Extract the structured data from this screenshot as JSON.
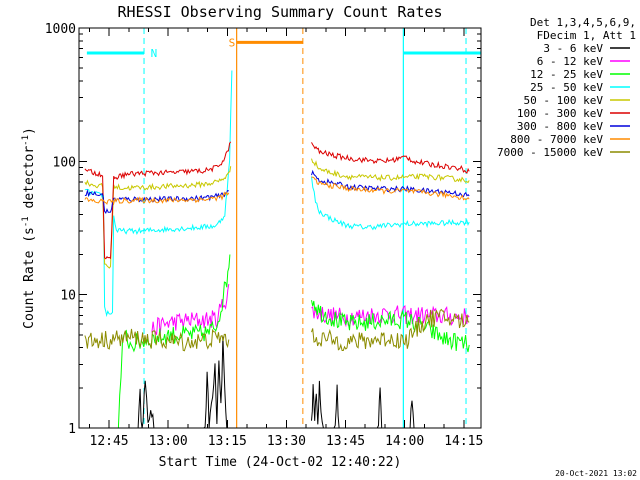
{
  "chart_data": {
    "type": "line",
    "title": "RHESSI Observing Summary Count Rates",
    "xlabel": "Start Time (24-Oct-02 12:40:22)",
    "ylabel_parts": [
      "Count Rate (s",
      "-1",
      " detector",
      "-1",
      ")"
    ],
    "yscale": "log",
    "ylim": [
      1,
      1000
    ],
    "xlim": [
      -3.0,
      99.0
    ],
    "x_units": "minutes after 12:40:22",
    "x_ticks": [
      {
        "x": 4.63,
        "label": "12:45"
      },
      {
        "x": 19.63,
        "label": "13:00"
      },
      {
        "x": 34.63,
        "label": "13:15"
      },
      {
        "x": 49.63,
        "label": "13:30"
      },
      {
        "x": 64.63,
        "label": "13:45"
      },
      {
        "x": 79.63,
        "label": "14:00"
      },
      {
        "x": 94.63,
        "label": "14:15"
      }
    ],
    "y_ticks": [
      {
        "y": 1,
        "label": "1"
      },
      {
        "y": 10,
        "label": "10"
      },
      {
        "y": 100,
        "label": "100"
      },
      {
        "y": 1000,
        "label": "1000"
      }
    ],
    "legend_header": [
      "Det 1,3,4,5,6,9,",
      "FDecim 1, Att 1"
    ],
    "legend_position": "right, outside plot",
    "series": [
      {
        "name": "3 - 6 keV",
        "color": "#000000",
        "segments": [
          [
            [
              12.0,
              1
            ],
            [
              12.5,
              1.7
            ],
            [
              13.0,
              1
            ],
            [
              13.8,
              2.2
            ],
            [
              14.5,
              1
            ],
            [
              15.2,
              1.5
            ],
            [
              16.0,
              1
            ],
            [
              29.0,
              1
            ],
            [
              29.5,
              2.5
            ],
            [
              30.0,
              1
            ],
            [
              31.5,
              3
            ],
            [
              32.0,
              1.2
            ],
            [
              32.5,
              3.5
            ],
            [
              33.0,
              1.5
            ],
            [
              33.5,
              4.5
            ],
            [
              34.0,
              2
            ],
            [
              34.5,
              1
            ]
          ],
          [
            [
              56.0,
              1
            ],
            [
              56.4,
              2.2
            ],
            [
              56.8,
              1
            ],
            [
              57.2,
              1.8
            ],
            [
              57.6,
              1
            ],
            [
              58.0,
              2.4
            ],
            [
              58.4,
              1.2
            ],
            [
              59.0,
              1
            ],
            [
              62.0,
              1
            ],
            [
              62.5,
              2
            ],
            [
              63.0,
              1
            ],
            [
              73.0,
              1
            ],
            [
              73.4,
              2
            ],
            [
              73.8,
              1
            ],
            [
              81.0,
              1
            ],
            [
              81.5,
              1.7
            ],
            [
              82.0,
              1
            ]
          ]
        ]
      },
      {
        "name": "6 - 12 keV",
        "color": "#ff00ff",
        "segments": [
          [
            [
              15.5,
              5.5
            ],
            [
              20.0,
              6.2
            ],
            [
              25.0,
              6.4
            ],
            [
              30.0,
              6.5
            ],
            [
              32.0,
              6.6
            ],
            [
              33.0,
              8
            ],
            [
              34.5,
              9.5
            ],
            [
              35.0,
              12
            ]
          ],
          [
            [
              56.0,
              7.5
            ],
            [
              60.0,
              7.0
            ],
            [
              65.0,
              6.8
            ],
            [
              70.0,
              7.0
            ],
            [
              75.0,
              7.2
            ],
            [
              80.0,
              7.0
            ],
            [
              85.0,
              7.0
            ],
            [
              90.0,
              6.9
            ],
            [
              96.0,
              6.8
            ]
          ]
        ]
      },
      {
        "name": "12 - 25 keV",
        "color": "#00ff00",
        "segments": [
          [
            [
              7.0,
              1
            ],
            [
              8.0,
              4
            ],
            [
              9.0,
              5
            ],
            [
              10.0,
              4.2
            ],
            [
              15.0,
              4.6
            ],
            [
              20.0,
              5.0
            ],
            [
              25.0,
              5.0
            ],
            [
              30.0,
              5.2
            ],
            [
              32.0,
              6
            ],
            [
              33.0,
              8
            ],
            [
              34.5,
              13
            ],
            [
              35.3,
              20
            ]
          ],
          [
            [
              56.0,
              9.5
            ],
            [
              58.0,
              7.5
            ],
            [
              62.0,
              6.5
            ],
            [
              65.0,
              6.0
            ],
            [
              70.0,
              6.2
            ],
            [
              75.0,
              6.4
            ],
            [
              80.0,
              6.5
            ],
            [
              85.0,
              5.6
            ],
            [
              90.0,
              4.6
            ],
            [
              93.0,
              4.4
            ],
            [
              96.0,
              4.2
            ]
          ]
        ]
      },
      {
        "name": "25 - 50 keV",
        "color": "#00ffff",
        "segments": [
          [
            [
              -1.5,
              60
            ],
            [
              2.0,
              56
            ],
            [
              3.2,
              55
            ],
            [
              3.5,
              8
            ],
            [
              4.0,
              7.3
            ],
            [
              5.5,
              7.3
            ],
            [
              5.8,
              40
            ],
            [
              6.5,
              30
            ],
            [
              12.0,
              30
            ],
            [
              20.0,
              31
            ],
            [
              28.0,
              32
            ],
            [
              32.0,
              33
            ],
            [
              34.0,
              40
            ],
            [
              35.2,
              100
            ],
            [
              35.8,
              480
            ]
          ],
          [
            [
              56.0,
              75
            ],
            [
              57.0,
              50
            ],
            [
              58.0,
              42
            ],
            [
              61.0,
              37
            ],
            [
              65.0,
              33
            ],
            [
              70.0,
              32
            ],
            [
              75.0,
              33
            ],
            [
              80.0,
              34
            ],
            [
              85.0,
              34
            ],
            [
              90.0,
              34.5
            ],
            [
              96.0,
              35
            ]
          ]
        ]
      },
      {
        "name": "50 - 100 keV",
        "color": "#c8c800",
        "segments": [
          [
            [
              -1.5,
              70
            ],
            [
              1.0,
              66
            ],
            [
              3.0,
              65
            ],
            [
              3.5,
              17
            ],
            [
              5.0,
              16
            ],
            [
              5.8,
              65
            ],
            [
              8.0,
              63
            ],
            [
              15.0,
              64
            ],
            [
              20.0,
              65
            ],
            [
              25.0,
              66
            ],
            [
              30.0,
              68
            ],
            [
              33.0,
              72
            ],
            [
              35.0,
              80
            ],
            [
              35.5,
              92
            ]
          ],
          [
            [
              56.0,
              105
            ],
            [
              58.0,
              88
            ],
            [
              61.0,
              82
            ],
            [
              65.0,
              77
            ],
            [
              70.0,
              76
            ],
            [
              75.0,
              75
            ],
            [
              80.0,
              76
            ],
            [
              85.0,
              77
            ],
            [
              90.0,
              75
            ],
            [
              96.0,
              72
            ]
          ]
        ]
      },
      {
        "name": "100 - 300 keV",
        "color": "#dc0000",
        "segments": [
          [
            [
              -1.5,
              85
            ],
            [
              1.0,
              82
            ],
            [
              3.0,
              80
            ],
            [
              3.5,
              19
            ],
            [
              5.0,
              18
            ],
            [
              5.8,
              75
            ],
            [
              9.0,
              80
            ],
            [
              15.0,
              82
            ],
            [
              20.0,
              82
            ],
            [
              25.0,
              84
            ],
            [
              29.0,
              85
            ],
            [
              32.0,
              90
            ],
            [
              34.0,
              105
            ],
            [
              35.5,
              140
            ]
          ],
          [
            [
              56.0,
              135
            ],
            [
              58.0,
              118
            ],
            [
              62.0,
              110
            ],
            [
              66.0,
              105
            ],
            [
              70.0,
              102
            ],
            [
              74.0,
              100
            ],
            [
              77.0,
              103
            ],
            [
              80.0,
              108
            ],
            [
              82.0,
              100
            ],
            [
              86.0,
              95
            ],
            [
              90.0,
              92
            ],
            [
              94.0,
              88
            ],
            [
              96.0,
              84
            ]
          ]
        ]
      },
      {
        "name": "300 - 800 keV",
        "color": "#0000dc",
        "segments": [
          [
            [
              -1.5,
              58
            ],
            [
              1.0,
              57
            ],
            [
              3.2,
              55
            ],
            [
              3.5,
              42
            ],
            [
              5.0,
              42
            ],
            [
              5.8,
              52
            ],
            [
              12.0,
              52
            ],
            [
              20.0,
              52
            ],
            [
              28.0,
              53
            ],
            [
              33.0,
              55
            ],
            [
              35.0,
              60
            ]
          ],
          [
            [
              56.0,
              82
            ],
            [
              58.0,
              72
            ],
            [
              62.0,
              68
            ],
            [
              66.0,
              64
            ],
            [
              70.0,
              63
            ],
            [
              75.0,
              62
            ],
            [
              80.0,
              62
            ],
            [
              85.0,
              60
            ],
            [
              90.0,
              59
            ],
            [
              94.0,
              57
            ],
            [
              96.0,
              55
            ]
          ]
        ]
      },
      {
        "name": "800 - 7000 keV",
        "color": "#ff8c00",
        "segments": [
          [
            [
              -1.5,
              52
            ],
            [
              1.0,
              50
            ],
            [
              3.2,
              50
            ],
            [
              5.8,
              50
            ],
            [
              10.0,
              51
            ],
            [
              20.0,
              51
            ],
            [
              30.0,
              52
            ],
            [
              33.0,
              54
            ],
            [
              35.0,
              58
            ]
          ],
          [
            [
              56.0,
              75
            ],
            [
              58.0,
              68
            ],
            [
              62.0,
              65
            ],
            [
              66.0,
              62
            ],
            [
              70.0,
              61
            ],
            [
              75.0,
              60
            ],
            [
              80.0,
              60
            ],
            [
              85.0,
              58
            ],
            [
              90.0,
              56
            ],
            [
              94.0,
              54
            ],
            [
              96.0,
              52
            ]
          ]
        ]
      },
      {
        "name": "7000 - 15000 keV",
        "color": "#8c8c00",
        "segments": [
          [
            [
              -1.5,
              4.5
            ],
            [
              5.0,
              4.6
            ],
            [
              10.0,
              4.8
            ],
            [
              15.0,
              4.6
            ],
            [
              20.0,
              4.5
            ],
            [
              25.0,
              4.4
            ],
            [
              30.0,
              4.6
            ],
            [
              33.0,
              4.8
            ],
            [
              35.0,
              4.6
            ]
          ],
          [
            [
              56.0,
              4.8
            ],
            [
              60.0,
              4.6
            ],
            [
              65.0,
              4.4
            ],
            [
              70.0,
              4.5
            ],
            [
              75.0,
              4.7
            ],
            [
              80.0,
              4.5
            ],
            [
              85.0,
              6.5
            ],
            [
              88.0,
              6.8
            ],
            [
              92.0,
              6.5
            ],
            [
              96.0,
              6.2
            ]
          ]
        ]
      }
    ],
    "annotations": [
      {
        "label": "N",
        "color": "#00ffff",
        "type": "night",
        "bars": [
          [
            -1.0,
            13.5
          ],
          [
            79.3,
            99.0
          ]
        ],
        "bar_y": 650,
        "solid_lines": [
          79.3
        ],
        "dashed_lines": [
          13.5,
          95.2
        ],
        "label_x": 16.0
      },
      {
        "label": "S",
        "color": "#ff8c00",
        "type": "saa",
        "bars": [
          [
            37.0,
            53.8
          ]
        ],
        "bar_y": 780,
        "solid_lines": [
          37.0
        ],
        "dashed_lines": [
          53.8
        ],
        "label_x": 35.8
      }
    ],
    "timestamp": "20-Oct-2021 13:02"
  }
}
